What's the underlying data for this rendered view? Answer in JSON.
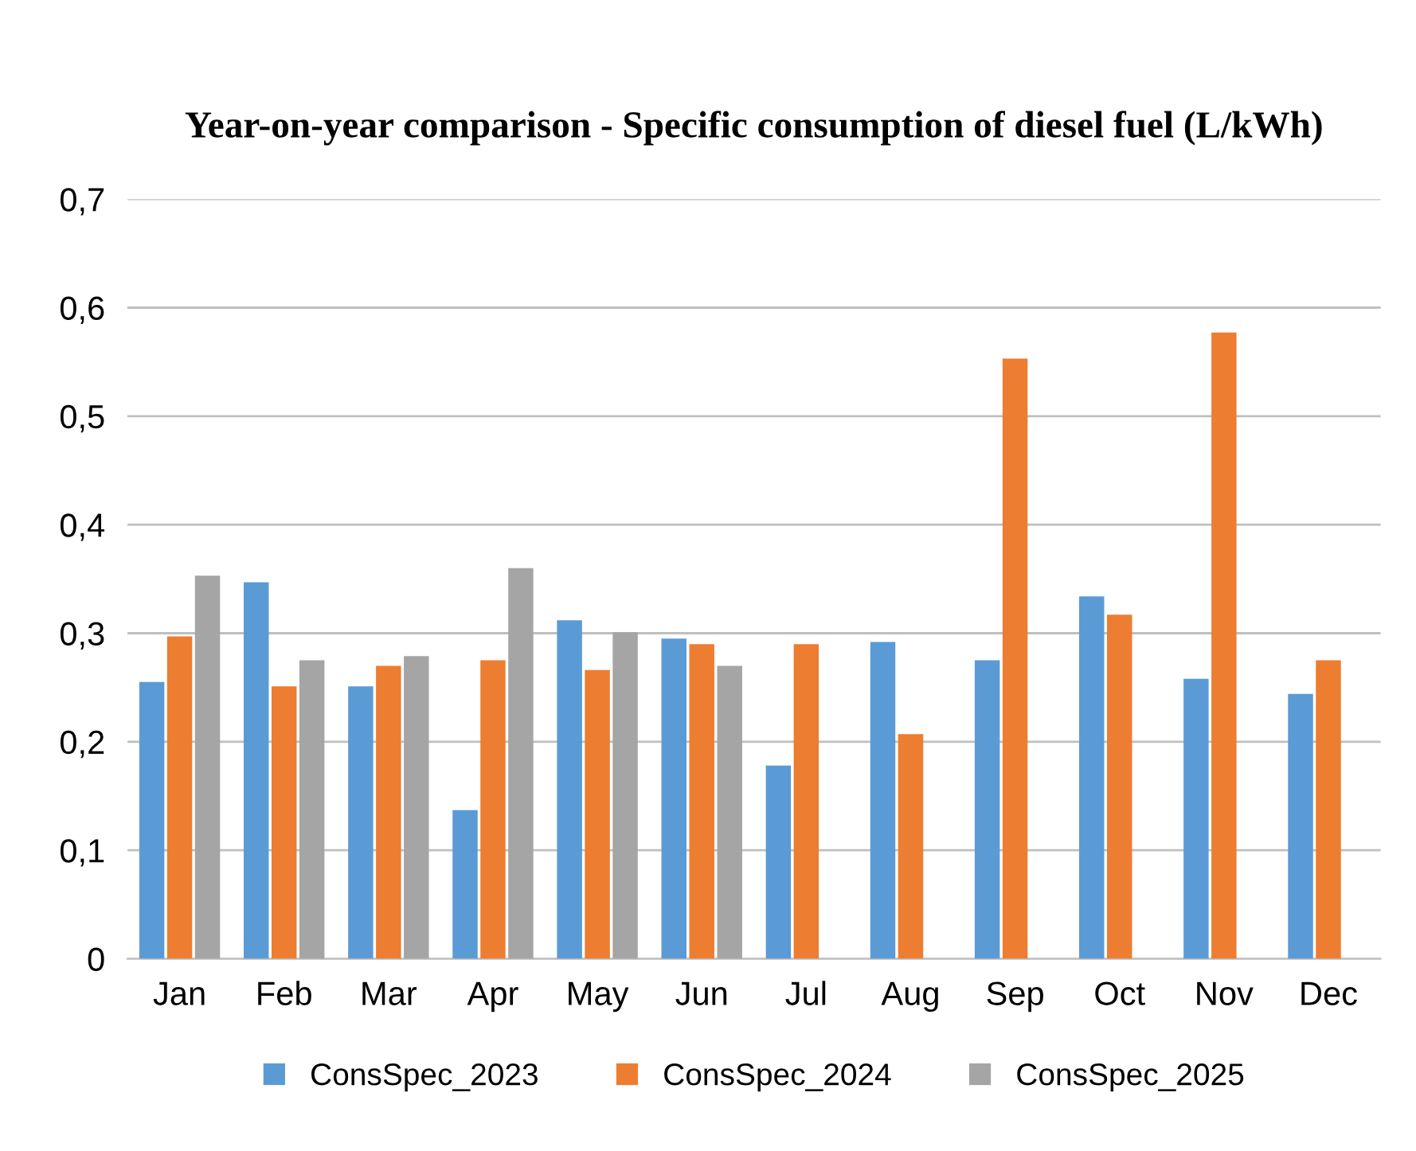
{
  "chart_data": {
    "type": "bar",
    "title": "Year-on-year comparison - Specific consumption of diesel fuel (L/kWh)",
    "categories": [
      "Jan",
      "Feb",
      "Mar",
      "Apr",
      "May",
      "Jun",
      "Jul",
      "Aug",
      "Sep",
      "Oct",
      "Nov",
      "Dec"
    ],
    "series": [
      {
        "name": "ConsSpec_2023",
        "color": "#5b9bd5",
        "values": [
          0.255,
          0.347,
          0.251,
          0.137,
          0.312,
          0.295,
          0.178,
          0.292,
          0.275,
          0.334,
          0.258,
          0.244
        ]
      },
      {
        "name": "ConsSpec_2024",
        "color": "#ed7d31",
        "values": [
          0.297,
          0.251,
          0.27,
          0.275,
          0.266,
          0.29,
          0.29,
          0.207,
          0.553,
          0.317,
          0.577,
          0.275
        ]
      },
      {
        "name": "ConsSpec_2025",
        "color": "#a5a5a5",
        "values": [
          0.353,
          0.275,
          0.279,
          0.36,
          0.301,
          0.27,
          null,
          null,
          null,
          null,
          null,
          null
        ]
      }
    ],
    "ylim": [
      0,
      0.7
    ],
    "yticks": [
      0,
      {
        "value": 0.1,
        "label": "0,1"
      },
      {
        "value": 0.2,
        "label": "0,2"
      },
      {
        "value": 0.3,
        "label": "0,3"
      },
      {
        "value": 0.4,
        "label": "0,4"
      },
      {
        "value": 0.5,
        "label": "0,5"
      },
      {
        "value": 0.6,
        "label": "0,6"
      },
      {
        "value": 0.7,
        "label": "0,7"
      }
    ],
    "grid": "y",
    "legend": "bottom"
  }
}
